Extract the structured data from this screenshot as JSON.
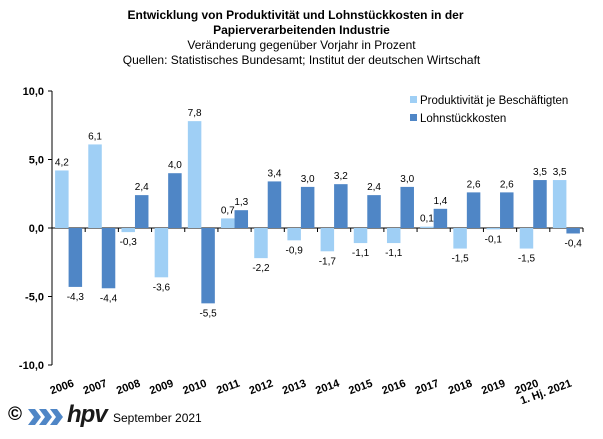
{
  "title": {
    "line1": "Entwicklung von Produktivität und Lohnstückkosten  in der",
    "line2": "Papierverarbeitenden Industrie",
    "line3": "Veränderung  gegenüber  Vorjahr  in Prozent",
    "line4": "Quellen: Statistisches Bundesamt; Institut der deutschen Wirtschaft"
  },
  "footer": {
    "copyright": "©",
    "logo_text": "hpv",
    "date": "September 2021"
  },
  "colors": {
    "produktivitaet": "#9fcff5",
    "lohnstueckkosten": "#4f86c6",
    "axis": "#000000",
    "text": "#000000"
  },
  "chart_data": {
    "type": "bar",
    "title": "Entwicklung von Produktivität und Lohnstückkosten  in der Papierverarbeitenden Industrie",
    "xlabel": "",
    "ylabel": "",
    "ylim": [
      -10,
      10
    ],
    "yticks": [
      "10,0",
      "5,0",
      "0,0",
      "-5,0",
      "-10,0"
    ],
    "ytick_values": [
      10,
      5,
      0,
      -5,
      -10
    ],
    "grid": false,
    "legend": "top-right",
    "categories": [
      "2006",
      "2007",
      "2008",
      "2009",
      "2010",
      "2011",
      "2012",
      "2013",
      "2014",
      "2015",
      "2016",
      "2017",
      "2018",
      "2019",
      "2020",
      "1. Hj. 2021"
    ],
    "series": [
      {
        "name": "Produktivität je Beschäftigten",
        "values": [
          4.2,
          6.1,
          -0.3,
          -3.6,
          7.8,
          0.7,
          -2.2,
          -0.9,
          -1.7,
          -1.1,
          -1.1,
          0.1,
          -1.5,
          -0.1,
          -1.5,
          3.5
        ],
        "labels": [
          "4,2",
          "6,1",
          "-0,3",
          "-3,6",
          "7,8",
          "0,7",
          "-2,2",
          "-0,9",
          "-1,7",
          "-1,1",
          "-1,1",
          "0,1",
          "-1,5",
          "-0,1",
          "-1,5",
          "3,5"
        ]
      },
      {
        "name": "Lohnstückkosten",
        "values": [
          -4.3,
          -4.4,
          2.4,
          4.0,
          -5.5,
          1.3,
          3.4,
          3.0,
          3.2,
          2.4,
          3.0,
          1.4,
          2.6,
          2.6,
          3.5,
          -0.4
        ],
        "labels": [
          "-4,3",
          "-4,4",
          "2,4",
          "4,0",
          "-5,5",
          "1,3",
          "3,4",
          "3,0",
          "3,2",
          "2,4",
          "3,0",
          "1,4",
          "2,6",
          "2,6",
          "3,5",
          "-0,4"
        ]
      }
    ]
  }
}
